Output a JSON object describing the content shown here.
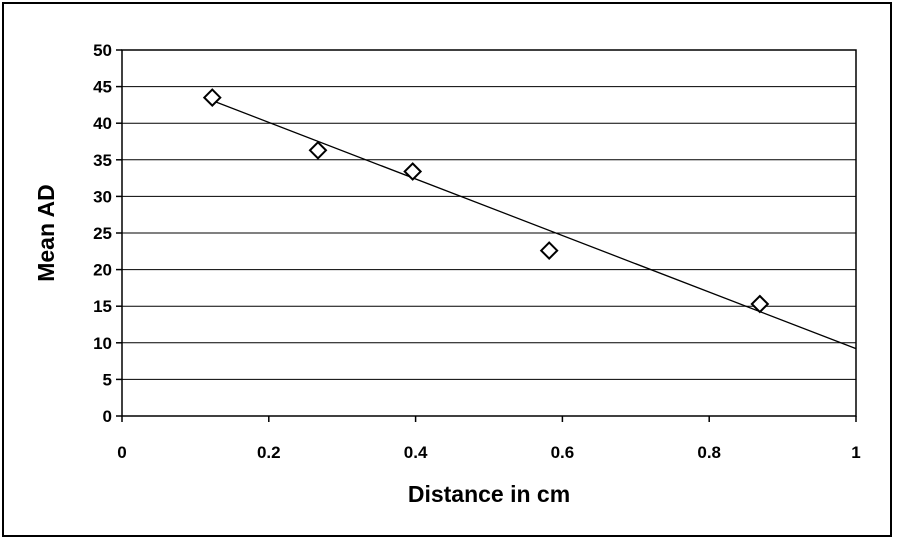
{
  "chart_data": {
    "type": "scatter",
    "title": "",
    "xlabel": "Distance in cm",
    "ylabel": "Mean AD",
    "xlim": [
      0,
      1
    ],
    "ylim": [
      0,
      50
    ],
    "x_ticks": [
      0,
      0.2,
      0.4,
      0.6,
      0.8,
      1
    ],
    "x_tick_labels": [
      "0",
      "0.2",
      "0.4",
      "0.6",
      "0.8",
      "1"
    ],
    "y_ticks": [
      0,
      5,
      10,
      15,
      20,
      25,
      30,
      35,
      40,
      45,
      50
    ],
    "y_tick_labels": [
      "0",
      "5",
      "10",
      "15",
      "20",
      "25",
      "30",
      "35",
      "40",
      "45",
      "50"
    ],
    "grid": "horizontal",
    "legend": "none",
    "series": [
      {
        "marker": "open-diamond",
        "x": [
          0.123,
          0.267,
          0.396,
          0.582,
          0.869
        ],
        "y": [
          43.5,
          36.3,
          33.4,
          22.6,
          15.3
        ]
      }
    ],
    "trendline": {
      "type": "linear",
      "x": [
        0.12,
        1.0
      ],
      "y": [
        43.2,
        9.2
      ]
    },
    "colors": {
      "background": "#ffffff",
      "ink": "#000000"
    }
  }
}
